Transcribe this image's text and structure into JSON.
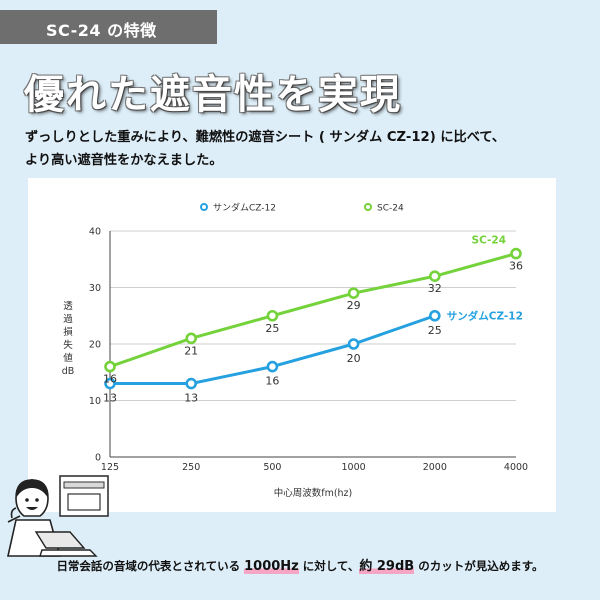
{
  "header": {
    "label": "SC-24 の特徴"
  },
  "headline": "優れた遮音性を実現",
  "intro": {
    "line1": "ずっしりとした重みにより、難燃性の遮音シート ( サンダム CZ-12) に比べて、",
    "line2": "より高い遮音性をかなえました。"
  },
  "caption": {
    "pre": "日常会話の音域の代表とされている ",
    "hl1": "1000Hz",
    "mid": " に対して、",
    "hl2": "約 29dB",
    "post": " のカットが見込めます。"
  },
  "colors": {
    "sc24": "#74d23a",
    "cz12": "#25a1e0",
    "background": "#ddeef8",
    "header": "#6e6e6e"
  },
  "chart_data": {
    "type": "line",
    "categories": [
      "125",
      "250",
      "500",
      "1000",
      "2000",
      "4000"
    ],
    "series": [
      {
        "name": "サンダムCZ-12",
        "end_label": "サンダムCZ-12",
        "color": "#25a1e0",
        "values": [
          13,
          13,
          16,
          20,
          25,
          null
        ]
      },
      {
        "name": "SC-24",
        "end_label": "SC-24",
        "color": "#74d23a",
        "values": [
          16,
          21,
          25,
          29,
          32,
          36
        ]
      }
    ],
    "xlabel": "中心周波数fm(hz)",
    "ylabel_chars": [
      "透",
      "過",
      "損",
      "失",
      "値",
      "dB"
    ],
    "yticks": [
      0,
      10,
      20,
      30,
      40
    ],
    "ylim": [
      0,
      40
    ],
    "grid": true,
    "legend_position": "top"
  }
}
